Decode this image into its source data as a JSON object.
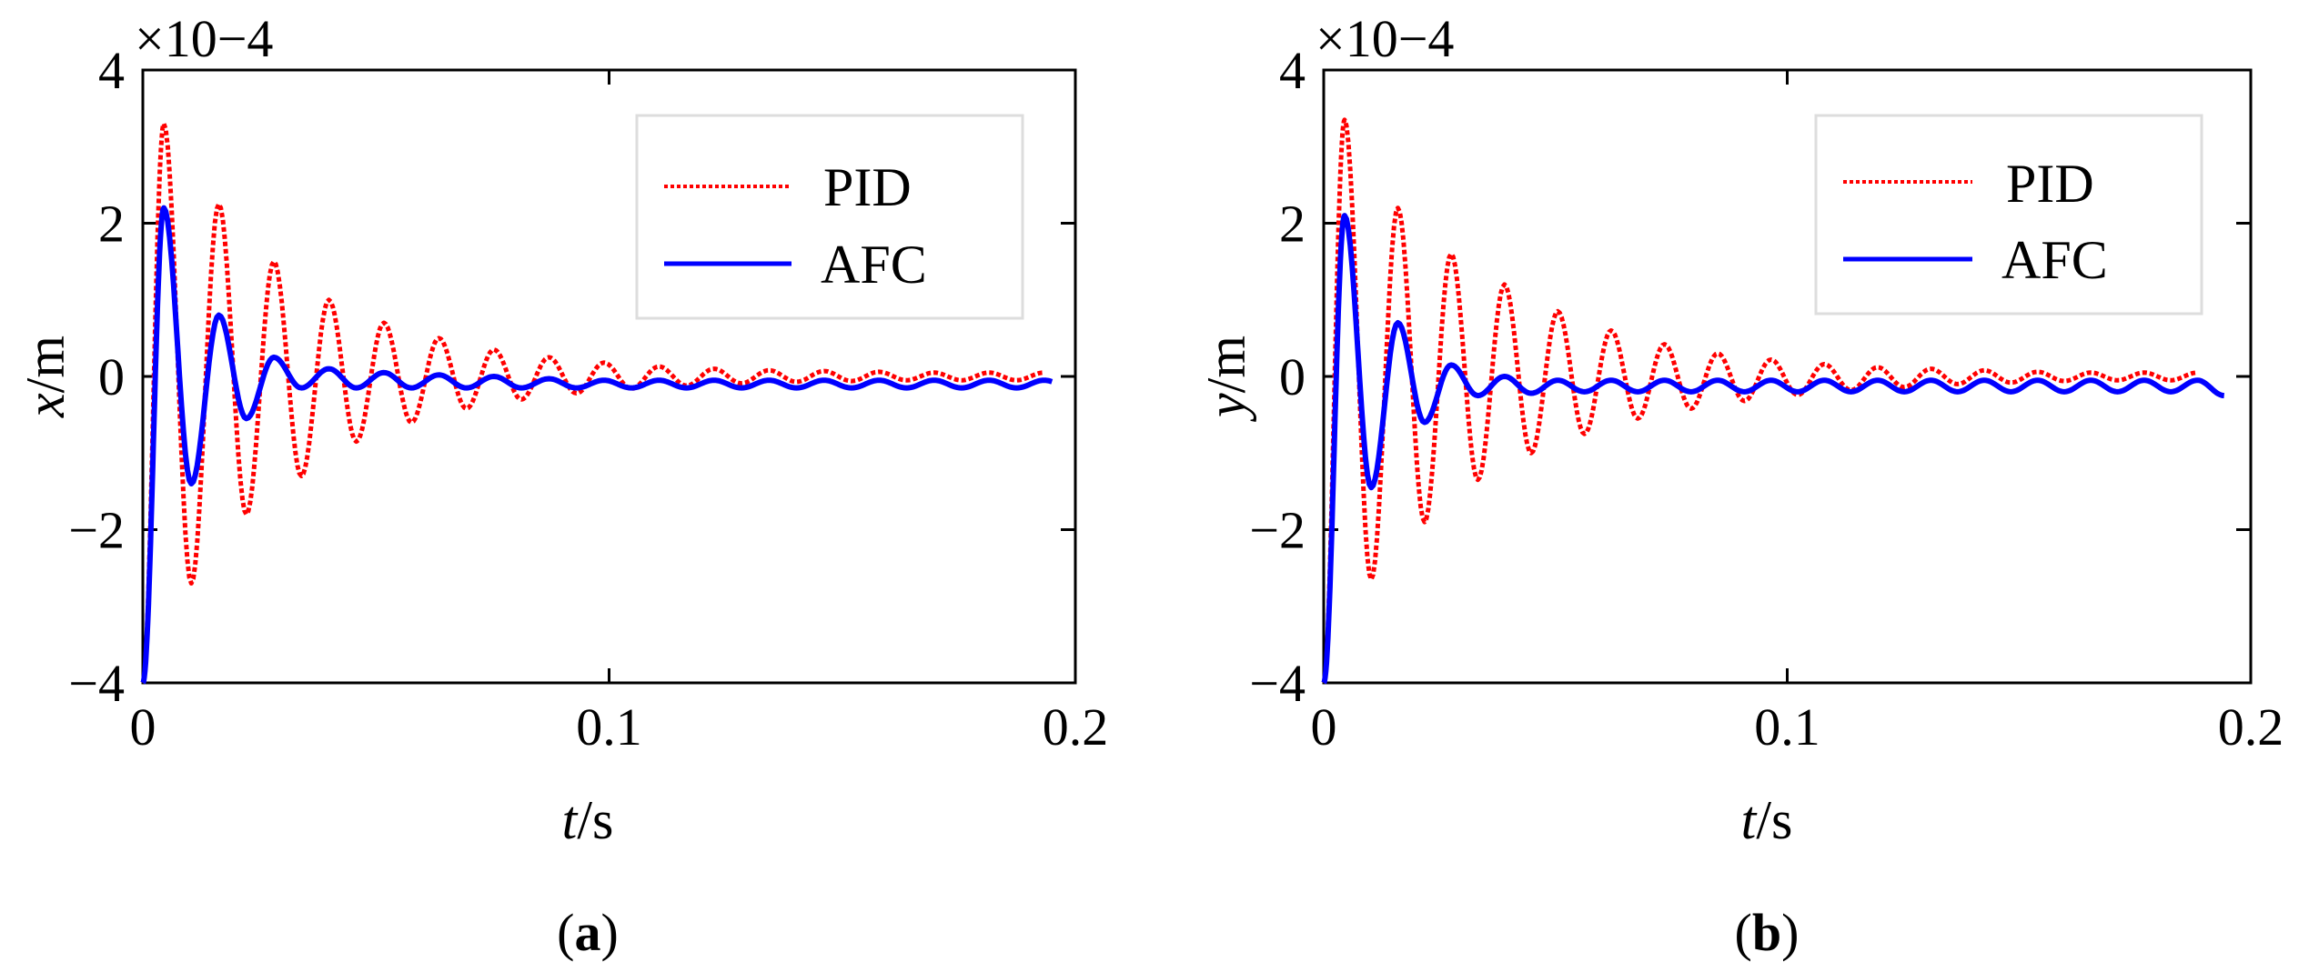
{
  "chart_data": [
    {
      "type": "line",
      "panel_label": "a",
      "title": "",
      "xlabel": {
        "var": "t",
        "unit": "/s"
      },
      "ylabel": {
        "var": "x",
        "unit": "/m"
      },
      "y_scale_text": "×10−4",
      "xlim": [
        0,
        0.2
      ],
      "ylim": [
        -4,
        4
      ],
      "xticks": [
        0,
        0.1,
        0.2
      ],
      "xtick_labels": [
        "0",
        "0.1",
        "0.2"
      ],
      "yticks": [
        -4,
        -2,
        0,
        2,
        4
      ],
      "ytick_labels": [
        "−4",
        "−2",
        "0",
        "2",
        "4"
      ],
      "legend": {
        "position": "top-right",
        "entries": [
          "PID",
          "AFC"
        ]
      },
      "series": [
        {
          "name": "PID",
          "color": "#ff0000",
          "style": "dotted",
          "model": {
            "y0": -4,
            "rise_time": 0.004,
            "offset": 0.0,
            "peaks": [
              3.3,
              2.25,
              1.5,
              1.0,
              0.7,
              0.5,
              0.35,
              0.25,
              0.18,
              0.13,
              0.1,
              0.08,
              0.07,
              0.06,
              0.05,
              0.05,
              0.05
            ],
            "troughs": [
              -2.7,
              -1.8,
              -1.3,
              -0.85,
              -0.6,
              -0.42,
              -0.3,
              -0.22,
              -0.16,
              -0.12,
              -0.09,
              -0.07,
              -0.06,
              -0.05,
              -0.05,
              -0.05
            ],
            "period": 0.0118,
            "end_x": 0.2
          }
        },
        {
          "name": "AFC",
          "color": "#0000ff",
          "style": "solid",
          "model": {
            "y0": -4,
            "rise_time": 0.004,
            "offset": -0.1,
            "peaks": [
              2.2,
              0.8,
              0.25,
              0.1,
              0.05,
              0.02,
              0.0,
              -0.03,
              -0.05,
              -0.05,
              -0.05,
              -0.05,
              -0.05,
              -0.05,
              -0.05,
              -0.05
            ],
            "troughs": [
              -1.4,
              -0.55,
              -0.15,
              -0.15,
              -0.15,
              -0.15,
              -0.15,
              -0.15,
              -0.15,
              -0.15,
              -0.15,
              -0.15,
              -0.15,
              -0.15,
              -0.15,
              -0.15
            ],
            "period": 0.0118,
            "end_x": 0.195
          }
        }
      ]
    },
    {
      "type": "line",
      "panel_label": "b",
      "title": "",
      "xlabel": {
        "var": "t",
        "unit": "/s"
      },
      "ylabel": {
        "var": "y",
        "unit": "/m"
      },
      "y_scale_text": "×10−4",
      "xlim": [
        0,
        0.2
      ],
      "ylim": [
        -4,
        4
      ],
      "xticks": [
        0,
        0.1,
        0.2
      ],
      "xtick_labels": [
        "0",
        "0.1",
        "0.2"
      ],
      "yticks": [
        -4,
        -2,
        0,
        2,
        4
      ],
      "ytick_labels": [
        "−4",
        "−2",
        "0",
        "2",
        "4"
      ],
      "legend": {
        "position": "top-right",
        "entries": [
          "PID",
          "AFC"
        ]
      },
      "series": [
        {
          "name": "PID",
          "color": "#ff0000",
          "style": "dotted",
          "model": {
            "y0": -4,
            "rise_time": 0.004,
            "offset": 0.0,
            "peaks": [
              3.35,
              2.2,
              1.6,
              1.2,
              0.85,
              0.6,
              0.42,
              0.3,
              0.22,
              0.16,
              0.12,
              0.1,
              0.08,
              0.06,
              0.05,
              0.05,
              0.05
            ],
            "troughs": [
              -2.65,
              -1.9,
              -1.35,
              -1.0,
              -0.75,
              -0.55,
              -0.42,
              -0.32,
              -0.24,
              -0.18,
              -0.14,
              -0.1,
              -0.08,
              -0.06,
              -0.05,
              -0.05
            ],
            "period": 0.0115,
            "end_x": 0.2
          }
        },
        {
          "name": "AFC",
          "color": "#0000ff",
          "style": "solid",
          "model": {
            "y0": -4,
            "rise_time": 0.004,
            "offset": -0.15,
            "peaks": [
              2.1,
              0.7,
              0.15,
              0.0,
              -0.05,
              -0.05,
              -0.05,
              -0.05,
              -0.05,
              -0.05,
              -0.05,
              -0.05,
              -0.05,
              -0.05,
              -0.05,
              -0.05
            ],
            "troughs": [
              -1.45,
              -0.6,
              -0.25,
              -0.22,
              -0.2,
              -0.2,
              -0.2,
              -0.2,
              -0.2,
              -0.2,
              -0.2,
              -0.2,
              -0.2,
              -0.2,
              -0.2,
              -0.2
            ],
            "period": 0.0115,
            "end_x": 0.195
          }
        }
      ]
    }
  ]
}
